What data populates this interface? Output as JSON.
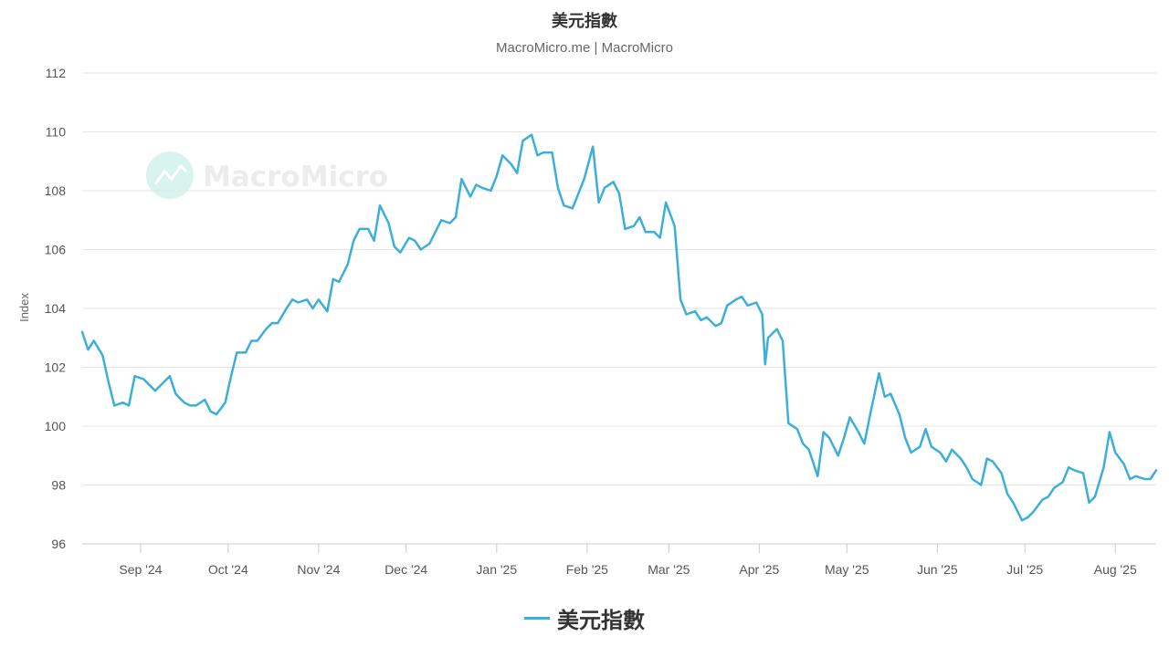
{
  "chart_data": {
    "type": "line",
    "title": "美元指數",
    "subtitle": "MacroMicro.me | MacroMicro",
    "watermark": "MacroMicro",
    "xlabel": "",
    "ylabel": "Index",
    "ylim": [
      96,
      112
    ],
    "yticks": [
      "96",
      "98",
      "100",
      "102",
      "104",
      "106",
      "108",
      "110",
      "112"
    ],
    "xticks": [
      {
        "date": "2024-09-01",
        "label": "Sep '24"
      },
      {
        "date": "2024-10-01",
        "label": "Oct '24"
      },
      {
        "date": "2024-11-01",
        "label": "Nov '24"
      },
      {
        "date": "2024-12-01",
        "label": "Dec '24"
      },
      {
        "date": "2025-01-01",
        "label": "Jan '25"
      },
      {
        "date": "2025-02-01",
        "label": "Feb '25"
      },
      {
        "date": "2025-03-01",
        "label": "Mar '25"
      },
      {
        "date": "2025-04-01",
        "label": "Apr '25"
      },
      {
        "date": "2025-05-01",
        "label": "May '25"
      },
      {
        "date": "2025-06-01",
        "label": "Jun '25"
      },
      {
        "date": "2025-07-01",
        "label": "Jul '25"
      },
      {
        "date": "2025-08-01",
        "label": "Aug '25"
      }
    ],
    "xrange": [
      "2024-08-12",
      "2025-08-15"
    ],
    "grid": true,
    "legend_position": "bottom-center",
    "colors": {
      "series": "#3bafda",
      "grid": "#e6e6e6",
      "axis": "#cccccc"
    },
    "series": [
      {
        "name": "美元指數",
        "points": [
          [
            "2024-08-12",
            103.2
          ],
          [
            "2024-08-14",
            102.6
          ],
          [
            "2024-08-16",
            102.9
          ],
          [
            "2024-08-19",
            102.4
          ],
          [
            "2024-08-21",
            101.5
          ],
          [
            "2024-08-23",
            100.7
          ],
          [
            "2024-08-26",
            100.8
          ],
          [
            "2024-08-28",
            100.7
          ],
          [
            "2024-08-30",
            101.7
          ],
          [
            "2024-09-02",
            101.6
          ],
          [
            "2024-09-04",
            101.4
          ],
          [
            "2024-09-06",
            101.2
          ],
          [
            "2024-09-09",
            101.5
          ],
          [
            "2024-09-11",
            101.7
          ],
          [
            "2024-09-13",
            101.1
          ],
          [
            "2024-09-16",
            100.8
          ],
          [
            "2024-09-18",
            100.7
          ],
          [
            "2024-09-20",
            100.7
          ],
          [
            "2024-09-23",
            100.9
          ],
          [
            "2024-09-25",
            100.5
          ],
          [
            "2024-09-27",
            100.4
          ],
          [
            "2024-09-30",
            100.8
          ],
          [
            "2024-10-02",
            101.7
          ],
          [
            "2024-10-04",
            102.5
          ],
          [
            "2024-10-07",
            102.5
          ],
          [
            "2024-10-09",
            102.9
          ],
          [
            "2024-10-11",
            102.9
          ],
          [
            "2024-10-14",
            103.3
          ],
          [
            "2024-10-16",
            103.5
          ],
          [
            "2024-10-18",
            103.5
          ],
          [
            "2024-10-21",
            104.0
          ],
          [
            "2024-10-23",
            104.3
          ],
          [
            "2024-10-25",
            104.2
          ],
          [
            "2024-10-28",
            104.3
          ],
          [
            "2024-10-30",
            104.0
          ],
          [
            "2024-11-01",
            104.3
          ],
          [
            "2024-11-04",
            103.9
          ],
          [
            "2024-11-06",
            105.0
          ],
          [
            "2024-11-08",
            104.9
          ],
          [
            "2024-11-11",
            105.5
          ],
          [
            "2024-11-13",
            106.3
          ],
          [
            "2024-11-15",
            106.7
          ],
          [
            "2024-11-18",
            106.7
          ],
          [
            "2024-11-20",
            106.3
          ],
          [
            "2024-11-22",
            107.5
          ],
          [
            "2024-11-25",
            106.9
          ],
          [
            "2024-11-27",
            106.1
          ],
          [
            "2024-11-29",
            105.9
          ],
          [
            "2024-12-02",
            106.4
          ],
          [
            "2024-12-04",
            106.3
          ],
          [
            "2024-12-06",
            106.0
          ],
          [
            "2024-12-09",
            106.2
          ],
          [
            "2024-12-11",
            106.6
          ],
          [
            "2024-12-13",
            107.0
          ],
          [
            "2024-12-16",
            106.9
          ],
          [
            "2024-12-18",
            107.1
          ],
          [
            "2024-12-20",
            108.4
          ],
          [
            "2024-12-23",
            107.8
          ],
          [
            "2024-12-25",
            108.2
          ],
          [
            "2024-12-27",
            108.1
          ],
          [
            "2024-12-30",
            108.0
          ],
          [
            "2025-01-01",
            108.5
          ],
          [
            "2025-01-03",
            109.2
          ],
          [
            "2025-01-06",
            108.9
          ],
          [
            "2025-01-08",
            108.6
          ],
          [
            "2025-01-10",
            109.7
          ],
          [
            "2025-01-13",
            109.9
          ],
          [
            "2025-01-15",
            109.2
          ],
          [
            "2025-01-17",
            109.3
          ],
          [
            "2025-01-20",
            109.3
          ],
          [
            "2025-01-22",
            108.1
          ],
          [
            "2025-01-24",
            107.5
          ],
          [
            "2025-01-27",
            107.4
          ],
          [
            "2025-01-29",
            107.9
          ],
          [
            "2025-01-31",
            108.4
          ],
          [
            "2025-02-03",
            109.5
          ],
          [
            "2025-02-05",
            107.6
          ],
          [
            "2025-02-07",
            108.1
          ],
          [
            "2025-02-10",
            108.3
          ],
          [
            "2025-02-12",
            107.9
          ],
          [
            "2025-02-14",
            106.7
          ],
          [
            "2025-02-17",
            106.8
          ],
          [
            "2025-02-19",
            107.1
          ],
          [
            "2025-02-21",
            106.6
          ],
          [
            "2025-02-24",
            106.6
          ],
          [
            "2025-02-26",
            106.4
          ],
          [
            "2025-02-28",
            107.6
          ],
          [
            "2025-03-03",
            106.8
          ],
          [
            "2025-03-05",
            104.3
          ],
          [
            "2025-03-07",
            103.8
          ],
          [
            "2025-03-10",
            103.9
          ],
          [
            "2025-03-12",
            103.6
          ],
          [
            "2025-03-14",
            103.7
          ],
          [
            "2025-03-17",
            103.4
          ],
          [
            "2025-03-19",
            103.5
          ],
          [
            "2025-03-21",
            104.1
          ],
          [
            "2025-03-24",
            104.3
          ],
          [
            "2025-03-26",
            104.4
          ],
          [
            "2025-03-28",
            104.1
          ],
          [
            "2025-03-31",
            104.2
          ],
          [
            "2025-04-02",
            103.8
          ],
          [
            "2025-04-03",
            102.1
          ],
          [
            "2025-04-04",
            103.0
          ],
          [
            "2025-04-07",
            103.3
          ],
          [
            "2025-04-09",
            102.9
          ],
          [
            "2025-04-11",
            100.1
          ],
          [
            "2025-04-14",
            99.9
          ],
          [
            "2025-04-16",
            99.4
          ],
          [
            "2025-04-18",
            99.2
          ],
          [
            "2025-04-21",
            98.3
          ],
          [
            "2025-04-23",
            99.8
          ],
          [
            "2025-04-25",
            99.6
          ],
          [
            "2025-04-28",
            99.0
          ],
          [
            "2025-04-30",
            99.6
          ],
          [
            "2025-05-02",
            100.3
          ],
          [
            "2025-05-05",
            99.8
          ],
          [
            "2025-05-07",
            99.4
          ],
          [
            "2025-05-09",
            100.4
          ],
          [
            "2025-05-12",
            101.8
          ],
          [
            "2025-05-14",
            101.0
          ],
          [
            "2025-05-16",
            101.1
          ],
          [
            "2025-05-19",
            100.4
          ],
          [
            "2025-05-21",
            99.6
          ],
          [
            "2025-05-23",
            99.1
          ],
          [
            "2025-05-26",
            99.3
          ],
          [
            "2025-05-28",
            99.9
          ],
          [
            "2025-05-30",
            99.3
          ],
          [
            "2025-06-02",
            99.1
          ],
          [
            "2025-06-04",
            98.8
          ],
          [
            "2025-06-06",
            99.2
          ],
          [
            "2025-06-09",
            98.9
          ],
          [
            "2025-06-11",
            98.6
          ],
          [
            "2025-06-13",
            98.2
          ],
          [
            "2025-06-16",
            98.0
          ],
          [
            "2025-06-18",
            98.9
          ],
          [
            "2025-06-20",
            98.8
          ],
          [
            "2025-06-23",
            98.4
          ],
          [
            "2025-06-25",
            97.7
          ],
          [
            "2025-06-27",
            97.4
          ],
          [
            "2025-06-30",
            96.8
          ],
          [
            "2025-07-02",
            96.9
          ],
          [
            "2025-07-04",
            97.1
          ],
          [
            "2025-07-07",
            97.5
          ],
          [
            "2025-07-09",
            97.6
          ],
          [
            "2025-07-11",
            97.9
          ],
          [
            "2025-07-14",
            98.1
          ],
          [
            "2025-07-16",
            98.6
          ],
          [
            "2025-07-18",
            98.5
          ],
          [
            "2025-07-21",
            98.4
          ],
          [
            "2025-07-23",
            97.4
          ],
          [
            "2025-07-25",
            97.6
          ],
          [
            "2025-07-28",
            98.6
          ],
          [
            "2025-07-30",
            99.8
          ],
          [
            "2025-08-01",
            99.1
          ],
          [
            "2025-08-04",
            98.7
          ],
          [
            "2025-08-06",
            98.2
          ],
          [
            "2025-08-08",
            98.3
          ],
          [
            "2025-08-11",
            98.2
          ],
          [
            "2025-08-13",
            98.2
          ],
          [
            "2025-08-15",
            98.5
          ]
        ]
      }
    ]
  }
}
